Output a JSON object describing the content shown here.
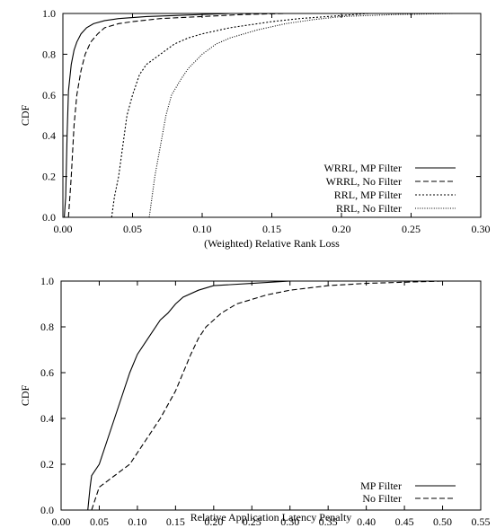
{
  "chart_data": [
    {
      "type": "line",
      "xlabel": "(Weighted) Relative Rank Loss",
      "ylabel": "CDF",
      "xlim": [
        0,
        0.3
      ],
      "ylim": [
        0,
        1.0
      ],
      "xticks": [
        "0.00",
        "0.05",
        "0.10",
        "0.15",
        "0.20",
        "0.25",
        "0.30"
      ],
      "yticks": [
        "0.0",
        "0.2",
        "0.4",
        "0.6",
        "0.8",
        "1.0"
      ],
      "legend_position": "bottom-right",
      "series": [
        {
          "name": "WRRL, MP Filter",
          "dash": "solid",
          "points": [
            [
              0.001,
              0.0
            ],
            [
              0.002,
              0.1
            ],
            [
              0.003,
              0.4
            ],
            [
              0.004,
              0.62
            ],
            [
              0.006,
              0.75
            ],
            [
              0.008,
              0.82
            ],
            [
              0.01,
              0.86
            ],
            [
              0.013,
              0.9
            ],
            [
              0.017,
              0.93
            ],
            [
              0.022,
              0.95
            ],
            [
              0.03,
              0.965
            ],
            [
              0.04,
              0.975
            ],
            [
              0.06,
              0.985
            ],
            [
              0.08,
              0.99
            ],
            [
              0.1,
              0.995
            ],
            [
              0.12,
              1.0
            ]
          ]
        },
        {
          "name": "WRRL, No Filter",
          "dash": "dashed",
          "points": [
            [
              0.004,
              0.0
            ],
            [
              0.006,
              0.2
            ],
            [
              0.008,
              0.45
            ],
            [
              0.01,
              0.6
            ],
            [
              0.013,
              0.72
            ],
            [
              0.016,
              0.8
            ],
            [
              0.02,
              0.86
            ],
            [
              0.025,
              0.9
            ],
            [
              0.03,
              0.93
            ],
            [
              0.04,
              0.95
            ],
            [
              0.05,
              0.96
            ],
            [
              0.07,
              0.975
            ],
            [
              0.1,
              0.985
            ],
            [
              0.13,
              0.995
            ],
            [
              0.16,
              1.0
            ]
          ]
        },
        {
          "name": "RRL, MP Filter",
          "dash": "dotted",
          "points": [
            [
              0.035,
              0.0
            ],
            [
              0.037,
              0.1
            ],
            [
              0.04,
              0.2
            ],
            [
              0.043,
              0.35
            ],
            [
              0.046,
              0.5
            ],
            [
              0.05,
              0.6
            ],
            [
              0.055,
              0.7
            ],
            [
              0.06,
              0.75
            ],
            [
              0.07,
              0.8
            ],
            [
              0.08,
              0.85
            ],
            [
              0.09,
              0.88
            ],
            [
              0.1,
              0.9
            ],
            [
              0.12,
              0.93
            ],
            [
              0.15,
              0.96
            ],
            [
              0.17,
              0.975
            ],
            [
              0.2,
              0.99
            ],
            [
              0.22,
              1.0
            ]
          ]
        },
        {
          "name": "RRL, No Filter",
          "dash": "densedotted",
          "points": [
            [
              0.062,
              0.0
            ],
            [
              0.064,
              0.1
            ],
            [
              0.066,
              0.2
            ],
            [
              0.07,
              0.35
            ],
            [
              0.074,
              0.5
            ],
            [
              0.078,
              0.6
            ],
            [
              0.085,
              0.68
            ],
            [
              0.09,
              0.73
            ],
            [
              0.1,
              0.8
            ],
            [
              0.11,
              0.85
            ],
            [
              0.12,
              0.88
            ],
            [
              0.14,
              0.92
            ],
            [
              0.16,
              0.95
            ],
            [
              0.18,
              0.97
            ],
            [
              0.2,
              0.985
            ],
            [
              0.24,
              0.995
            ],
            [
              0.28,
              1.0
            ]
          ]
        }
      ]
    },
    {
      "type": "line",
      "xlabel": "Relative Application Latency Penalty",
      "ylabel": "CDF",
      "xlim": [
        0,
        0.55
      ],
      "ylim": [
        0,
        1.0
      ],
      "xticks": [
        "0.00",
        "0.05",
        "0.10",
        "0.15",
        "0.20",
        "0.25",
        "0.30",
        "0.35",
        "0.40",
        "0.45",
        "0.50",
        "0.55"
      ],
      "yticks": [
        "0.0",
        "0.2",
        "0.4",
        "0.6",
        "0.8",
        "1.0"
      ],
      "legend_position": "bottom-right",
      "series": [
        {
          "name": "MP Filter",
          "dash": "solid",
          "points": [
            [
              0.035,
              0.0
            ],
            [
              0.038,
              0.1
            ],
            [
              0.04,
              0.15
            ],
            [
              0.05,
              0.2
            ],
            [
              0.06,
              0.3
            ],
            [
              0.07,
              0.4
            ],
            [
              0.08,
              0.5
            ],
            [
              0.09,
              0.6
            ],
            [
              0.1,
              0.68
            ],
            [
              0.11,
              0.73
            ],
            [
              0.12,
              0.78
            ],
            [
              0.13,
              0.83
            ],
            [
              0.14,
              0.86
            ],
            [
              0.15,
              0.9
            ],
            [
              0.16,
              0.93
            ],
            [
              0.18,
              0.96
            ],
            [
              0.2,
              0.98
            ],
            [
              0.25,
              0.99
            ],
            [
              0.3,
              1.0
            ]
          ]
        },
        {
          "name": "No Filter",
          "dash": "dashed",
          "points": [
            [
              0.04,
              0.0
            ],
            [
              0.045,
              0.05
            ],
            [
              0.05,
              0.1
            ],
            [
              0.07,
              0.15
            ],
            [
              0.09,
              0.2
            ],
            [
              0.11,
              0.3
            ],
            [
              0.13,
              0.4
            ],
            [
              0.15,
              0.52
            ],
            [
              0.16,
              0.6
            ],
            [
              0.17,
              0.68
            ],
            [
              0.18,
              0.75
            ],
            [
              0.19,
              0.8
            ],
            [
              0.21,
              0.86
            ],
            [
              0.23,
              0.9
            ],
            [
              0.27,
              0.94
            ],
            [
              0.3,
              0.96
            ],
            [
              0.35,
              0.98
            ],
            [
              0.4,
              0.99
            ],
            [
              0.5,
              1.0
            ]
          ]
        }
      ]
    }
  ]
}
